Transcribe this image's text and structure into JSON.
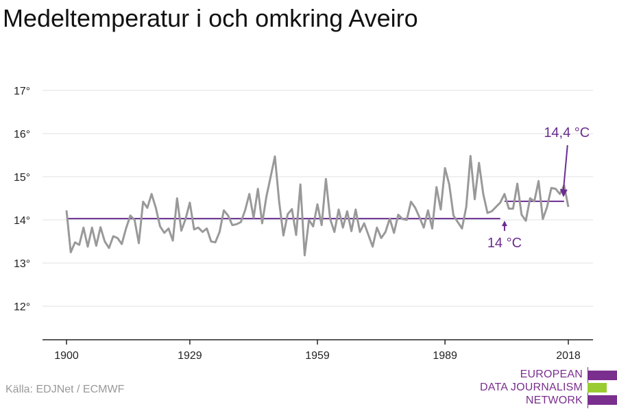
{
  "title": "Medeltemperatur i och omkring Aveiro",
  "source": "Källa: EDJNet / ECMWF",
  "logo": {
    "lines": [
      "EUROPEAN",
      "DATA JOURNALISM",
      "NETWORK"
    ],
    "colors": [
      "#7a2e8e",
      "#99cc33",
      "#7a2e8e"
    ]
  },
  "colors": {
    "series": "#999999",
    "average": "#6a2c91",
    "grid": "#e0e0e0",
    "axis": "#222222"
  },
  "chart_data": {
    "type": "line",
    "title": "Medeltemperatur i och omkring Aveiro",
    "xlabel": "",
    "ylabel": "",
    "xlim": [
      1900,
      2018
    ],
    "ylim": [
      11.2,
      17.3
    ],
    "x_ticks": [
      1900,
      1929,
      1959,
      1989,
      2018
    ],
    "y_ticks": [
      12,
      13,
      14,
      15,
      16,
      17
    ],
    "y_tick_labels": [
      "12°",
      "13°",
      "14°",
      "15°",
      "16°",
      "17°"
    ],
    "grid": true,
    "series": [
      {
        "x": [
          1900,
          1901,
          1902,
          1903,
          1904,
          1905,
          1906,
          1907,
          1908,
          1909,
          1910,
          1911,
          1912,
          1913,
          1914,
          1915,
          1916,
          1917,
          1918,
          1919,
          1920,
          1921,
          1922,
          1923,
          1924,
          1925,
          1926,
          1927,
          1928,
          1929,
          1930,
          1931,
          1932,
          1933,
          1934,
          1935,
          1936,
          1937,
          1938,
          1939,
          1940,
          1941,
          1942,
          1943,
          1944,
          1945,
          1946,
          1947,
          1948,
          1949,
          1950,
          1951,
          1952,
          1953,
          1954,
          1955,
          1956,
          1957,
          1958,
          1959,
          1960,
          1961,
          1962,
          1963,
          1964,
          1965,
          1966,
          1967,
          1968,
          1969,
          1970,
          1971,
          1972,
          1973,
          1974,
          1975,
          1976,
          1977,
          1978,
          1979,
          1980,
          1981,
          1982,
          1983,
          1984,
          1985,
          1986,
          1987,
          1988,
          1989,
          1990,
          1991,
          1992,
          1993,
          1994,
          1995,
          1996,
          1997,
          1998,
          1999,
          2000,
          2001,
          2002,
          2003,
          2004,
          2005,
          2006,
          2007,
          2008,
          2009,
          2010,
          2011,
          2012,
          2013,
          2014,
          2015,
          2016,
          2017,
          2018
        ],
        "y": [
          14.22,
          13.25,
          13.48,
          13.42,
          13.82,
          13.38,
          13.82,
          13.4,
          13.83,
          13.5,
          13.35,
          13.62,
          13.58,
          13.44,
          13.8,
          14.1,
          14.0,
          13.46,
          14.42,
          14.28,
          14.6,
          14.28,
          13.85,
          13.7,
          13.8,
          13.52,
          14.5,
          13.75,
          14.02,
          14.4,
          13.78,
          13.82,
          13.72,
          13.8,
          13.5,
          13.48,
          13.72,
          14.22,
          14.1,
          13.88,
          13.9,
          13.95,
          14.22,
          14.6,
          14.05,
          14.72,
          13.92,
          14.54,
          15.0,
          15.47,
          14.42,
          13.64,
          14.13,
          14.25,
          13.65,
          14.82,
          13.18,
          14.0,
          13.85,
          14.36,
          13.88,
          14.95,
          14.02,
          13.72,
          14.24,
          13.82,
          14.2,
          13.74,
          14.24,
          13.72,
          13.92,
          13.65,
          13.38,
          13.82,
          13.58,
          13.72,
          14.03,
          13.7,
          14.12,
          14.02,
          14.0,
          14.42,
          14.28,
          14.06,
          13.82,
          14.22,
          13.8,
          14.76,
          14.24,
          15.2,
          14.82,
          14.1,
          13.95,
          13.8,
          14.3,
          15.48,
          14.48,
          15.32,
          14.6,
          14.16,
          14.2,
          14.3,
          14.4,
          14.6,
          14.26,
          14.26,
          14.84,
          14.12,
          13.98,
          14.5,
          14.43,
          14.9,
          14.02,
          14.3,
          14.74,
          14.72,
          14.6,
          14.8,
          14.3
        ]
      }
    ],
    "averages": [
      {
        "x_start": 1900,
        "x_end": 2002,
        "value": 14.03
      },
      {
        "x_start": 2003,
        "x_end": 2017,
        "value": 14.43
      }
    ],
    "annotations": [
      {
        "label": "14 °C",
        "x": 2003,
        "y": 14.03,
        "direction": "below"
      },
      {
        "label": "14,4 °C",
        "x": 2017,
        "y": 14.43,
        "direction": "above"
      }
    ]
  }
}
